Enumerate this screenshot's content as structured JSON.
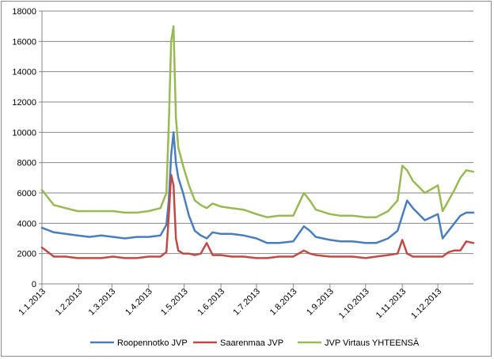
{
  "chart_data": {
    "type": "line",
    "title": "",
    "xlabel": "",
    "ylabel": "",
    "ylim": [
      0,
      18000
    ],
    "y_ticks": [
      0,
      2000,
      4000,
      6000,
      8000,
      10000,
      12000,
      14000,
      16000,
      18000
    ],
    "y_tick_labels": [
      "0",
      "2000",
      "4000",
      "6000",
      "8000",
      "10000",
      "12000",
      "14000",
      "16000",
      "18000"
    ],
    "x_tick_labels": [
      "1.1.2013",
      "1.2.2013",
      "1.3.2013",
      "1.4.2013",
      "1.5.2013",
      "1.6.2013",
      "1.7.2013",
      "1.8.2013",
      "1.9.2013",
      "1.10.2013",
      "1.11.2013",
      "1.12.2013"
    ],
    "x_tick_days": [
      0,
      31,
      59,
      90,
      120,
      151,
      181,
      212,
      243,
      273,
      304,
      334
    ],
    "x": [
      "2013-01-01",
      "2013-01-11",
      "2013-01-21",
      "2013-01-31",
      "2013-02-10",
      "2013-02-20",
      "2013-03-02",
      "2013-03-12",
      "2013-03-22",
      "2013-04-01",
      "2013-04-11",
      "2013-04-16",
      "2013-04-18",
      "2013-04-20",
      "2013-04-22",
      "2013-04-24",
      "2013-04-26",
      "2013-04-30",
      "2013-05-05",
      "2013-05-10",
      "2013-05-15",
      "2013-05-20",
      "2013-05-25",
      "2013-06-01",
      "2013-06-10",
      "2013-06-20",
      "2013-07-01",
      "2013-07-10",
      "2013-07-20",
      "2013-08-01",
      "2013-08-10",
      "2013-08-15",
      "2013-08-20",
      "2013-09-01",
      "2013-09-10",
      "2013-09-20",
      "2013-10-01",
      "2013-10-10",
      "2013-10-20",
      "2013-10-28",
      "2013-11-01",
      "2013-11-05",
      "2013-11-10",
      "2013-11-20",
      "2013-12-01",
      "2013-12-05",
      "2013-12-10",
      "2013-12-15",
      "2013-12-20",
      "2013-12-25",
      "2013-12-31"
    ],
    "series": [
      {
        "name": "Roopennotko JVP",
        "color": "#4a7ebb",
        "values": [
          3700,
          3400,
          3300,
          3200,
          3100,
          3200,
          3100,
          3000,
          3100,
          3100,
          3200,
          3900,
          5500,
          8500,
          10000,
          8000,
          7000,
          6000,
          4500,
          3500,
          3200,
          3000,
          3400,
          3300,
          3300,
          3200,
          3000,
          2700,
          2700,
          2800,
          3800,
          3500,
          3100,
          2900,
          2800,
          2800,
          2700,
          2700,
          3000,
          3500,
          4500,
          5500,
          5000,
          4200,
          4600,
          3000,
          3500,
          4000,
          4500,
          4700,
          4700
        ]
      },
      {
        "name": "Saarenmaa JVP",
        "color": "#be4b48",
        "values": [
          2400,
          1800,
          1800,
          1700,
          1700,
          1700,
          1800,
          1700,
          1700,
          1800,
          1800,
          2100,
          4500,
          7200,
          6500,
          3000,
          2200,
          2000,
          2000,
          1900,
          2000,
          2700,
          1900,
          1900,
          1800,
          1800,
          1700,
          1700,
          1800,
          1800,
          2200,
          2000,
          1900,
          1800,
          1800,
          1800,
          1700,
          1800,
          1900,
          2000,
          2900,
          2000,
          1800,
          1800,
          1800,
          1800,
          2100,
          2200,
          2200,
          2800,
          2700
        ]
      },
      {
        "name": "JVP Virtaus YHTEENSÄ",
        "color": "#98b954",
        "values": [
          6200,
          5200,
          5000,
          4800,
          4800,
          4800,
          4800,
          4700,
          4700,
          4800,
          5000,
          6000,
          10500,
          16000,
          17000,
          11000,
          9000,
          7800,
          6500,
          5500,
          5200,
          5000,
          5300,
          5100,
          5000,
          4900,
          4600,
          4400,
          4500,
          4500,
          6000,
          5500,
          4900,
          4600,
          4500,
          4500,
          4400,
          4400,
          4800,
          5500,
          7800,
          7500,
          6800,
          6000,
          6500,
          4800,
          5500,
          6200,
          7000,
          7500,
          7400
        ]
      }
    ]
  }
}
